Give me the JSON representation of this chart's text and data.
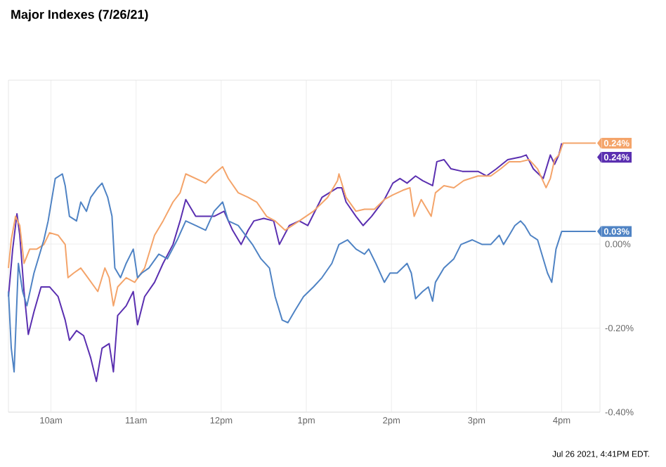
{
  "chart_data": {
    "type": "line",
    "title": "Major Indexes (7/26/21)",
    "xlim": [
      "2021-07-26T09:30",
      "2021-07-26T16:27"
    ],
    "ylim": [
      -0.4,
      0.39
    ],
    "xticks": [
      {
        "value": "2021-07-26T10:00",
        "label": "10am"
      },
      {
        "value": "2021-07-26T11:00",
        "label": "11am"
      },
      {
        "value": "2021-07-26T12:00",
        "label": "12pm"
      },
      {
        "value": "2021-07-26T13:00",
        "label": "1pm"
      },
      {
        "value": "2021-07-26T14:00",
        "label": "2pm"
      },
      {
        "value": "2021-07-26T15:00",
        "label": "3pm"
      },
      {
        "value": "2021-07-26T16:00",
        "label": "4pm"
      }
    ],
    "yticks": [
      {
        "value": 0,
        "label": "0.00%"
      },
      {
        "value": -0.2,
        "label": "-0.20%"
      },
      {
        "value": -0.4,
        "label": "-0.40%"
      }
    ],
    "grid": true,
    "marker": "none",
    "line_style": "solid",
    "series": [
      {
        "color": "#5a2fb0",
        "x": [
          "2021-07-26T09:30",
          "2021-07-26T09:33",
          "2021-07-26T09:36",
          "2021-07-26T09:38",
          "2021-07-26T09:41",
          "2021-07-26T09:44",
          "2021-07-26T09:48",
          "2021-07-26T09:53",
          "2021-07-26T09:59",
          "2021-07-26T10:05",
          "2021-07-26T10:10",
          "2021-07-26T10:13",
          "2021-07-26T10:18",
          "2021-07-26T10:23",
          "2021-07-26T10:28",
          "2021-07-26T10:32",
          "2021-07-26T10:36",
          "2021-07-26T10:41",
          "2021-07-26T10:44",
          "2021-07-26T10:47",
          "2021-07-26T10:53",
          "2021-07-26T10:58",
          "2021-07-26T11:01",
          "2021-07-26T11:06",
          "2021-07-26T11:13",
          "2021-07-26T11:19",
          "2021-07-26T11:26",
          "2021-07-26T11:31",
          "2021-07-26T11:35",
          "2021-07-26T11:42",
          "2021-07-26T11:49",
          "2021-07-26T11:55",
          "2021-07-26T12:02",
          "2021-07-26T12:08",
          "2021-07-26T12:14",
          "2021-07-26T12:19",
          "2021-07-26T12:23",
          "2021-07-26T12:30",
          "2021-07-26T12:37",
          "2021-07-26T12:41",
          "2021-07-26T12:48",
          "2021-07-26T12:55",
          "2021-07-26T13:01",
          "2021-07-26T13:11",
          "2021-07-26T13:22",
          "2021-07-26T13:25",
          "2021-07-26T13:28",
          "2021-07-26T13:35",
          "2021-07-26T13:40",
          "2021-07-26T13:46",
          "2021-07-26T13:55",
          "2021-07-26T14:01",
          "2021-07-26T14:06",
          "2021-07-26T14:11",
          "2021-07-26T14:17",
          "2021-07-26T14:22",
          "2021-07-26T14:29",
          "2021-07-26T14:32",
          "2021-07-26T14:37",
          "2021-07-26T14:42",
          "2021-07-26T14:50",
          "2021-07-26T15:01",
          "2021-07-26T15:07",
          "2021-07-26T15:14",
          "2021-07-26T15:22",
          "2021-07-26T15:31",
          "2021-07-26T15:35",
          "2021-07-26T15:40",
          "2021-07-26T15:47",
          "2021-07-26T15:52",
          "2021-07-26T15:55",
          "2021-07-26T15:58",
          "2021-07-26T16:00"
        ],
        "values": [
          -0.125,
          -0.012,
          0.072,
          0.021,
          -0.113,
          -0.215,
          -0.161,
          -0.102,
          -0.102,
          -0.125,
          -0.181,
          -0.229,
          -0.206,
          -0.218,
          -0.271,
          -0.327,
          -0.248,
          -0.237,
          -0.304,
          -0.17,
          -0.147,
          -0.113,
          -0.192,
          -0.125,
          -0.091,
          -0.046,
          -0.001,
          0.055,
          0.106,
          0.066,
          0.066,
          0.066,
          0.078,
          0.033,
          -0.001,
          0.033,
          0.055,
          0.061,
          0.055,
          -0.001,
          0.044,
          0.055,
          0.044,
          0.111,
          0.134,
          0.134,
          0.1,
          0.066,
          0.044,
          0.066,
          0.106,
          0.145,
          0.156,
          0.145,
          0.162,
          0.151,
          0.139,
          0.196,
          0.201,
          0.179,
          0.173,
          0.173,
          0.162,
          0.179,
          0.201,
          0.207,
          0.212,
          0.179,
          0.156,
          0.212,
          0.19,
          0.212,
          0.24
        ]
      },
      {
        "color": "#f4a46a",
        "x": [
          "2021-07-26T09:30",
          "2021-07-26T09:32",
          "2021-07-26T09:35",
          "2021-07-26T09:38",
          "2021-07-26T09:41",
          "2021-07-26T09:45",
          "2021-07-26T09:50",
          "2021-07-26T09:55",
          "2021-07-26T09:59",
          "2021-07-26T10:05",
          "2021-07-26T10:10",
          "2021-07-26T10:12",
          "2021-07-26T10:16",
          "2021-07-26T10:21",
          "2021-07-26T10:26",
          "2021-07-26T10:33",
          "2021-07-26T10:38",
          "2021-07-26T10:41",
          "2021-07-26T10:44",
          "2021-07-26T10:47",
          "2021-07-26T10:53",
          "2021-07-26T10:59",
          "2021-07-26T11:06",
          "2021-07-26T11:13",
          "2021-07-26T11:19",
          "2021-07-26T11:26",
          "2021-07-26T11:31",
          "2021-07-26T11:35",
          "2021-07-26T11:42",
          "2021-07-26T11:49",
          "2021-07-26T11:55",
          "2021-07-26T12:01",
          "2021-07-26T12:05",
          "2021-07-26T12:12",
          "2021-07-26T12:19",
          "2021-07-26T12:25",
          "2021-07-26T12:32",
          "2021-07-26T12:38",
          "2021-07-26T12:45",
          "2021-07-26T12:55",
          "2021-07-26T13:05",
          "2021-07-26T13:15",
          "2021-07-26T13:22",
          "2021-07-26T13:23",
          "2021-07-26T13:28",
          "2021-07-26T13:35",
          "2021-07-26T13:41",
          "2021-07-26T13:48",
          "2021-07-26T13:55",
          "2021-07-26T14:01",
          "2021-07-26T14:08",
          "2021-07-26T14:13",
          "2021-07-26T14:16",
          "2021-07-26T14:21",
          "2021-07-26T14:28",
          "2021-07-26T14:31",
          "2021-07-26T14:37",
          "2021-07-26T14:44",
          "2021-07-26T14:51",
          "2021-07-26T15:01",
          "2021-07-26T15:10",
          "2021-07-26T15:17",
          "2021-07-26T15:23",
          "2021-07-26T15:31",
          "2021-07-26T15:37",
          "2021-07-26T15:43",
          "2021-07-26T15:49",
          "2021-07-26T15:52",
          "2021-07-26T15:55",
          "2021-07-26T15:58",
          "2021-07-26T16:01",
          "2021-07-26T16:24"
        ],
        "values": [
          -0.057,
          0.01,
          0.066,
          0.044,
          -0.046,
          -0.012,
          -0.012,
          -0.001,
          0.027,
          0.021,
          -0.001,
          -0.08,
          -0.069,
          -0.057,
          -0.08,
          -0.113,
          -0.057,
          -0.08,
          -0.147,
          -0.102,
          -0.08,
          -0.091,
          -0.057,
          0.021,
          0.055,
          0.1,
          0.122,
          0.167,
          0.156,
          0.145,
          0.167,
          0.184,
          0.156,
          0.122,
          0.111,
          0.1,
          0.066,
          0.055,
          0.033,
          0.055,
          0.078,
          0.111,
          0.151,
          0.167,
          0.111,
          0.078,
          0.083,
          0.083,
          0.106,
          0.117,
          0.128,
          0.134,
          0.066,
          0.106,
          0.066,
          0.122,
          0.139,
          0.134,
          0.151,
          0.162,
          0.162,
          0.179,
          0.196,
          0.196,
          0.201,
          0.179,
          0.134,
          0.156,
          0.201,
          0.212,
          0.24,
          0.24
        ]
      },
      {
        "color": "#4f83c4",
        "x": [
          "2021-07-26T09:30",
          "2021-07-26T09:32",
          "2021-07-26T09:34",
          "2021-07-26T09:37",
          "2021-07-26T09:40",
          "2021-07-26T09:43",
          "2021-07-26T09:48",
          "2021-07-26T09:55",
          "2021-07-26T09:58",
          "2021-07-26T10:03",
          "2021-07-26T10:08",
          "2021-07-26T10:10",
          "2021-07-26T10:13",
          "2021-07-26T10:18",
          "2021-07-26T10:21",
          "2021-07-26T10:25",
          "2021-07-26T10:28",
          "2021-07-26T10:33",
          "2021-07-26T10:36",
          "2021-07-26T10:40",
          "2021-07-26T10:43",
          "2021-07-26T10:45",
          "2021-07-26T10:49",
          "2021-07-26T10:53",
          "2021-07-26T10:58",
          "2021-07-26T11:01",
          "2021-07-26T11:04",
          "2021-07-26T11:09",
          "2021-07-26T11:16",
          "2021-07-26T11:22",
          "2021-07-26T11:29",
          "2021-07-26T11:35",
          "2021-07-26T11:42",
          "2021-07-26T11:49",
          "2021-07-26T11:55",
          "2021-07-26T12:01",
          "2021-07-26T12:05",
          "2021-07-26T12:12",
          "2021-07-26T12:22",
          "2021-07-26T12:28",
          "2021-07-26T12:34",
          "2021-07-26T12:38",
          "2021-07-26T12:43",
          "2021-07-26T12:47",
          "2021-07-26T12:52",
          "2021-07-26T12:58",
          "2021-07-26T13:05",
          "2021-07-26T13:11",
          "2021-07-26T13:18",
          "2021-07-26T13:23",
          "2021-07-26T13:29",
          "2021-07-26T13:35",
          "2021-07-26T13:41",
          "2021-07-26T13:44",
          "2021-07-26T13:49",
          "2021-07-26T13:55",
          "2021-07-26T13:59",
          "2021-07-26T14:04",
          "2021-07-26T14:11",
          "2021-07-26T14:14",
          "2021-07-26T14:17",
          "2021-07-26T14:22",
          "2021-07-26T14:26",
          "2021-07-26T14:29",
          "2021-07-26T14:31",
          "2021-07-26T14:37",
          "2021-07-26T14:44",
          "2021-07-26T14:49",
          "2021-07-26T14:57",
          "2021-07-26T15:04",
          "2021-07-26T15:10",
          "2021-07-26T15:16",
          "2021-07-26T15:19",
          "2021-07-26T15:23",
          "2021-07-26T15:27",
          "2021-07-26T15:31",
          "2021-07-26T15:34",
          "2021-07-26T15:38",
          "2021-07-26T15:43",
          "2021-07-26T15:47",
          "2021-07-26T15:50",
          "2021-07-26T15:53",
          "2021-07-26T15:56",
          "2021-07-26T16:00",
          "2021-07-26T16:24"
        ],
        "values": [
          -0.113,
          -0.248,
          -0.304,
          -0.046,
          -0.113,
          -0.147,
          -0.069,
          0.01,
          0.055,
          0.156,
          0.167,
          0.139,
          0.066,
          0.055,
          0.1,
          0.078,
          0.111,
          0.134,
          0.145,
          0.111,
          0.066,
          -0.057,
          -0.08,
          -0.046,
          -0.012,
          -0.08,
          -0.069,
          -0.057,
          -0.024,
          -0.035,
          0.01,
          0.055,
          0.044,
          0.033,
          0.078,
          0.1,
          0.055,
          0.044,
          -0.001,
          -0.035,
          -0.057,
          -0.125,
          -0.181,
          -0.187,
          -0.158,
          -0.125,
          -0.102,
          -0.08,
          -0.046,
          -0.001,
          0.01,
          -0.012,
          -0.024,
          -0.012,
          -0.046,
          -0.091,
          -0.069,
          -0.069,
          -0.046,
          -0.069,
          -0.13,
          -0.113,
          -0.102,
          -0.136,
          -0.091,
          -0.057,
          -0.035,
          -0.001,
          0.01,
          -0.001,
          -0.001,
          0.021,
          -0.001,
          0.021,
          0.044,
          0.055,
          0.044,
          0.021,
          0.01,
          -0.035,
          -0.069,
          -0.091,
          -0.012,
          0.03,
          0.03
        ]
      }
    ],
    "annotations": [
      {
        "text": "0.24%",
        "x": "2021-07-26T16:24",
        "y": 0.24
      },
      {
        "text": "0.24%",
        "x": "2021-07-26T16:24",
        "y": 0.24
      },
      {
        "text": "0.03%",
        "x": "2021-07-26T16:24",
        "y": 0.03
      },
      "Jul 26 2021, 4:41PM EDT."
    ]
  }
}
